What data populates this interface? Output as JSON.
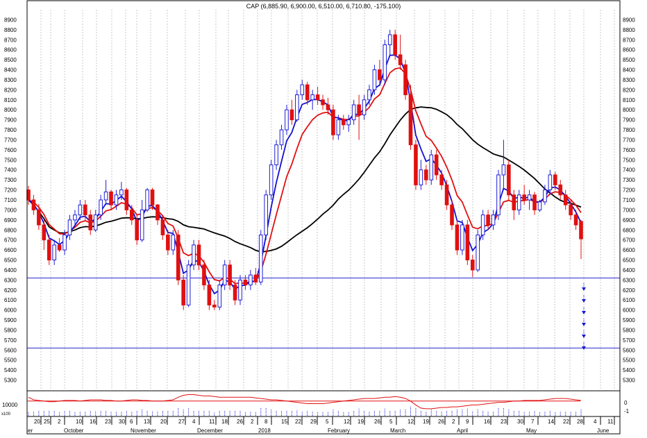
{
  "chart_data": {
    "type": "candlestick",
    "title": "CAP (6,885.90, 6,900.00, 6,510.00, 6,710.80, -175.100)",
    "price_axis": {
      "ylim": [
        5200,
        9000
      ],
      "ticks": [
        5300,
        5400,
        5500,
        5600,
        5700,
        5800,
        5900,
        6000,
        6100,
        6200,
        6300,
        6400,
        6500,
        6600,
        6700,
        6800,
        6900,
        7000,
        7100,
        7200,
        7300,
        7400,
        7500,
        7600,
        7700,
        7800,
        7900,
        8000,
        8100,
        8200,
        8300,
        8400,
        8500,
        8600,
        8700,
        8800,
        8900
      ],
      "tick_labels_side": "both"
    },
    "time_axis": {
      "day_labels": [
        "20",
        "25",
        "2",
        "10",
        "16",
        "23",
        "30",
        "6",
        "13",
        "20",
        "27",
        "4",
        "11",
        "18",
        "26",
        "2",
        "8",
        "15",
        "22",
        "29",
        "5",
        "12",
        "19",
        "26",
        "5",
        "12",
        "19",
        "26",
        "2",
        "9",
        "16",
        "23",
        "30",
        "7",
        "14",
        "22",
        "28",
        "4",
        "11"
      ],
      "month_labels": [
        "er",
        "October",
        "November",
        "December",
        "2018",
        "February",
        "March",
        "April",
        "May",
        "June"
      ]
    },
    "colors": {
      "up_candle": "#1d1dd6",
      "down_candle": "#e01010",
      "fast_ma": "#1010d0",
      "mid_ma": "#e01010",
      "slow_ma": "#000000",
      "hlines": "#2a2ad0",
      "gridlines": "#c8c8c8",
      "arrows": "#1515d0"
    },
    "horizontal_lines": [
      6320,
      5620
    ],
    "target_arrows": "down, six stacked",
    "candles": [
      [
        7200,
        7240,
        7050,
        7100
      ],
      [
        7100,
        7150,
        6950,
        7000
      ],
      [
        7000,
        7060,
        6800,
        6850
      ],
      [
        6850,
        6900,
        6600,
        6700
      ],
      [
        6700,
        6750,
        6450,
        6500
      ],
      [
        6500,
        6700,
        6450,
        6650
      ],
      [
        6650,
        6720,
        6580,
        6600
      ],
      [
        6600,
        6800,
        6550,
        6750
      ],
      [
        6750,
        6950,
        6700,
        6900
      ],
      [
        6900,
        7000,
        6850,
        6950
      ],
      [
        6950,
        7100,
        6900,
        7050
      ],
      [
        7050,
        7100,
        6900,
        6950
      ],
      [
        6950,
        7000,
        6750,
        6800
      ],
      [
        6800,
        7000,
        6780,
        6950
      ],
      [
        6950,
        7150,
        6900,
        7100
      ],
      [
        7100,
        7300,
        7050,
        7180
      ],
      [
        7180,
        7200,
        7000,
        7050
      ],
      [
        7050,
        7200,
        7000,
        7150
      ],
      [
        7150,
        7280,
        7100,
        7200
      ],
      [
        7200,
        7220,
        6950,
        7000
      ],
      [
        7000,
        7050,
        6850,
        6900
      ],
      [
        6900,
        6950,
        6650,
        6700
      ],
      [
        6700,
        7100,
        6680,
        7000
      ],
      [
        7000,
        7220,
        6980,
        7200
      ],
      [
        7200,
        7220,
        7000,
        7050
      ],
      [
        7050,
        7060,
        6850,
        6900
      ],
      [
        6900,
        6950,
        6700,
        6750
      ],
      [
        6750,
        6800,
        6550,
        6600
      ],
      [
        6600,
        6800,
        6550,
        6750
      ],
      [
        6750,
        6800,
        6250,
        6300
      ],
      [
        6300,
        6350,
        6000,
        6050
      ],
      [
        6050,
        6500,
        6030,
        6450
      ],
      [
        6450,
        6700,
        6400,
        6650
      ],
      [
        6650,
        6700,
        6400,
        6450
      ],
      [
        6450,
        6500,
        6200,
        6250
      ],
      [
        6250,
        6300,
        6000,
        6050
      ],
      [
        6050,
        6100,
        6000,
        6030
      ],
      [
        6030,
        6300,
        6000,
        6250
      ],
      [
        6250,
        6500,
        6200,
        6450
      ],
      [
        6450,
        6500,
        6200,
        6250
      ],
      [
        6250,
        6300,
        6050,
        6100
      ],
      [
        6100,
        6350,
        6050,
        6300
      ],
      [
        6300,
        6350,
        6200,
        6250
      ],
      [
        6250,
        6400,
        6200,
        6350
      ],
      [
        6350,
        6420,
        6250,
        6280
      ],
      [
        6280,
        6800,
        6250,
        6750
      ],
      [
        6750,
        7200,
        6700,
        7150
      ],
      [
        7150,
        7500,
        7100,
        7450
      ],
      [
        7450,
        7700,
        7400,
        7650
      ],
      [
        7650,
        7850,
        7600,
        7800
      ],
      [
        7800,
        8050,
        7750,
        8000
      ],
      [
        8000,
        8100,
        7850,
        7900
      ],
      [
        7900,
        8200,
        7880,
        8150
      ],
      [
        8150,
        8300,
        8100,
        8250
      ],
      [
        8250,
        8280,
        8050,
        8100
      ],
      [
        8100,
        8200,
        8000,
        8150
      ],
      [
        8150,
        8230,
        8050,
        8100
      ],
      [
        8100,
        8150,
        8000,
        8050
      ],
      [
        8050,
        8120,
        7950,
        8000
      ],
      [
        8000,
        8050,
        7700,
        7750
      ],
      [
        7750,
        7950,
        7700,
        7900
      ],
      [
        7900,
        7950,
        7800,
        7850
      ],
      [
        7850,
        7950,
        7780,
        7900
      ],
      [
        7900,
        8100,
        7850,
        8050
      ],
      [
        8050,
        8150,
        7700,
        7950
      ],
      [
        7950,
        8150,
        7900,
        8100
      ],
      [
        8100,
        8250,
        8050,
        8200
      ],
      [
        8200,
        8450,
        8150,
        8400
      ],
      [
        8400,
        8500,
        8250,
        8300
      ],
      [
        8300,
        8700,
        8250,
        8650
      ],
      [
        8650,
        8800,
        8550,
        8750
      ],
      [
        8750,
        8800,
        8500,
        8550
      ],
      [
        8550,
        8750,
        8400,
        8450
      ],
      [
        8450,
        8500,
        8100,
        8150
      ],
      [
        8150,
        8250,
        7600,
        7650
      ],
      [
        7650,
        7700,
        7200,
        7250
      ],
      [
        7250,
        7500,
        7200,
        7400
      ],
      [
        7400,
        7450,
        7250,
        7300
      ],
      [
        7300,
        7600,
        7250,
        7550
      ],
      [
        7550,
        7600,
        7300,
        7350
      ],
      [
        7350,
        7400,
        7200,
        7250
      ],
      [
        7250,
        7300,
        7000,
        7050
      ],
      [
        7050,
        7100,
        6800,
        6850
      ],
      [
        6850,
        6900,
        6550,
        6600
      ],
      [
        6600,
        6900,
        6550,
        6850
      ],
      [
        6850,
        6900,
        6450,
        6500
      ],
      [
        6500,
        6550,
        6330,
        6400
      ],
      [
        6400,
        6800,
        6380,
        6750
      ],
      [
        6750,
        7000,
        6700,
        6950
      ],
      [
        6950,
        7000,
        6800,
        6850
      ],
      [
        6850,
        7000,
        6800,
        6950
      ],
      [
        6950,
        7400,
        6900,
        7350
      ],
      [
        7350,
        7700,
        7200,
        7450
      ],
      [
        7450,
        7500,
        7100,
        7150
      ],
      [
        7150,
        7200,
        6900,
        7000
      ],
      [
        7000,
        7200,
        6950,
        7150
      ],
      [
        7150,
        7250,
        7050,
        7100
      ],
      [
        7100,
        7200,
        7000,
        7150
      ],
      [
        7150,
        7180,
        6950,
        7000
      ],
      [
        7000,
        7100,
        6980,
        7080
      ],
      [
        7080,
        7250,
        7050,
        7200
      ],
      [
        7200,
        7400,
        7150,
        7350
      ],
      [
        7350,
        7380,
        7200,
        7250
      ],
      [
        7250,
        7300,
        7100,
        7150
      ],
      [
        7150,
        7200,
        7000,
        7050
      ],
      [
        7050,
        7100,
        6900,
        6950
      ],
      [
        6950,
        7000,
        6800,
        6850
      ],
      [
        6885.9,
        6900,
        6510,
        6710.8
      ]
    ],
    "lower_panel": {
      "left_label": "10000",
      "multiplier_label": "x100",
      "right_ticks": [
        "0",
        "-1"
      ],
      "series": [
        {
          "name": "indicator",
          "color": "#e01010",
          "values": [
            0.3,
            0.1,
            0.05,
            0.0,
            -0.05,
            -0.05,
            0.0,
            0.05,
            0.05,
            0.05,
            0.0,
            0.05,
            0.1,
            0.1,
            0.1,
            0.05,
            0.05,
            0.0,
            0.0,
            0.05,
            0.1,
            0.1,
            0.05,
            0.05,
            0.0,
            0.0,
            0.0,
            0.05,
            0.1,
            0.3,
            0.45,
            0.5,
            0.5,
            0.45,
            0.4,
            0.4,
            0.35,
            0.3,
            0.3,
            0.3,
            0.3,
            0.3,
            0.3,
            0.3,
            0.25,
            0.2,
            0.15,
            0.1,
            0.1,
            0.05,
            0.0,
            -0.05,
            -0.1,
            -0.15,
            -0.2,
            -0.2,
            -0.2,
            -0.2,
            -0.15,
            -0.1,
            -0.05,
            0.0,
            0.05,
            0.1,
            0.15,
            0.2,
            0.2,
            0.2,
            0.25,
            0.3,
            0.3,
            0.35,
            0.3,
            0.2,
            0.0,
            -0.3,
            -0.55,
            -0.6,
            -0.6,
            -0.55,
            -0.5,
            -0.5,
            -0.45,
            -0.45,
            -0.4,
            -0.35,
            -0.3,
            -0.3,
            -0.25,
            -0.2,
            -0.15,
            -0.1,
            -0.1,
            -0.05,
            0.0,
            0.0,
            0.05,
            0.05,
            0.05,
            0.05,
            0.1,
            0.15,
            0.2,
            0.2,
            0.2,
            0.15,
            0.1,
            0.05
          ]
        }
      ]
    }
  }
}
